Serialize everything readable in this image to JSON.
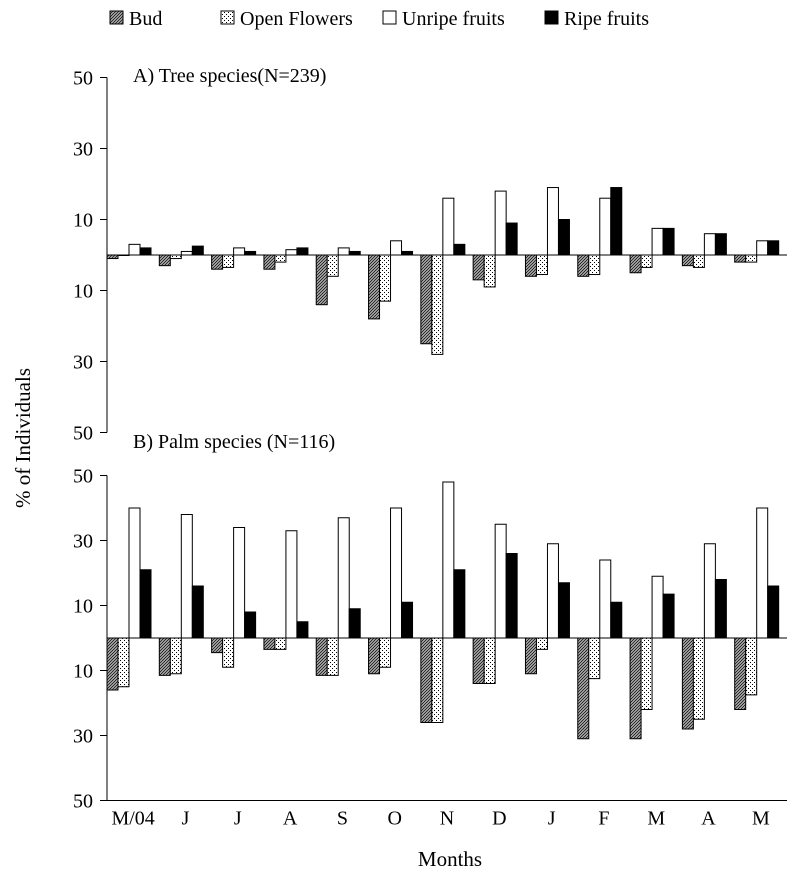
{
  "legend": [
    {
      "label": "Bud",
      "fill": "bud-pattern"
    },
    {
      "label": "Open Flowers",
      "fill": "flower-pattern"
    },
    {
      "label": "Unripe fruits",
      "fill": "#ffffff"
    },
    {
      "label": "Ripe fruits",
      "fill": "#000000"
    }
  ],
  "xlabel": "Months",
  "ylabel": "% of Individuals",
  "chart_data": [
    {
      "type": "bar",
      "title": "A) Tree species(N=239)",
      "categories": [
        "M/04",
        "J",
        "J",
        "A",
        "S",
        "O",
        "N",
        "D",
        "J",
        "F",
        "M",
        "A",
        "M"
      ],
      "yticks": [
        "50",
        "30",
        "10",
        "10",
        "30",
        "50"
      ],
      "ylim": [
        -50,
        50
      ],
      "series": [
        {
          "name": "Bud",
          "values": [
            -1,
            -3,
            -4,
            -4,
            -14,
            -18,
            -25,
            -7,
            -6,
            -6,
            -5,
            -3,
            -2
          ]
        },
        {
          "name": "Open Flowers",
          "values": [
            0,
            -1,
            -3.5,
            -2,
            -6,
            -13,
            -28,
            -9,
            -5.5,
            -5.5,
            -3.5,
            -3.5,
            -2
          ]
        },
        {
          "name": "Unripe fruits",
          "values": [
            3,
            1,
            2,
            1.5,
            2,
            4,
            16,
            18,
            19,
            16,
            7.5,
            6,
            4
          ]
        },
        {
          "name": "Ripe fruits",
          "values": [
            2,
            2.5,
            1,
            2,
            1,
            1,
            3,
            9,
            10,
            19,
            7.5,
            6,
            4
          ]
        }
      ]
    },
    {
      "type": "bar",
      "title": "B) Palm species (N=116)",
      "categories": [
        "M/04",
        "J",
        "J",
        "A",
        "S",
        "O",
        "N",
        "D",
        "J",
        "F",
        "M",
        "A",
        "M"
      ],
      "yticks": [
        "50",
        "30",
        "10",
        "10",
        "30",
        "50"
      ],
      "ylim": [
        -50,
        50
      ],
      "series": [
        {
          "name": "Bud",
          "values": [
            -16,
            -11.5,
            -4.5,
            -3.5,
            -11.5,
            -11,
            -26,
            -14,
            -11,
            -31,
            -31,
            -28,
            -22
          ]
        },
        {
          "name": "Open Flowers",
          "values": [
            -15,
            -11,
            -9,
            -3.5,
            -11.5,
            -9,
            -26,
            -14,
            -3.5,
            -12.5,
            -22,
            -25,
            -17.5
          ]
        },
        {
          "name": "Unripe fruits",
          "values": [
            40,
            38,
            34,
            33,
            37,
            40,
            48,
            35,
            29,
            24,
            19,
            29,
            40
          ]
        },
        {
          "name": "Ripe fruits",
          "values": [
            21,
            16,
            8,
            5,
            9,
            11,
            21,
            26,
            17,
            11,
            13.5,
            18,
            16
          ]
        }
      ]
    }
  ]
}
